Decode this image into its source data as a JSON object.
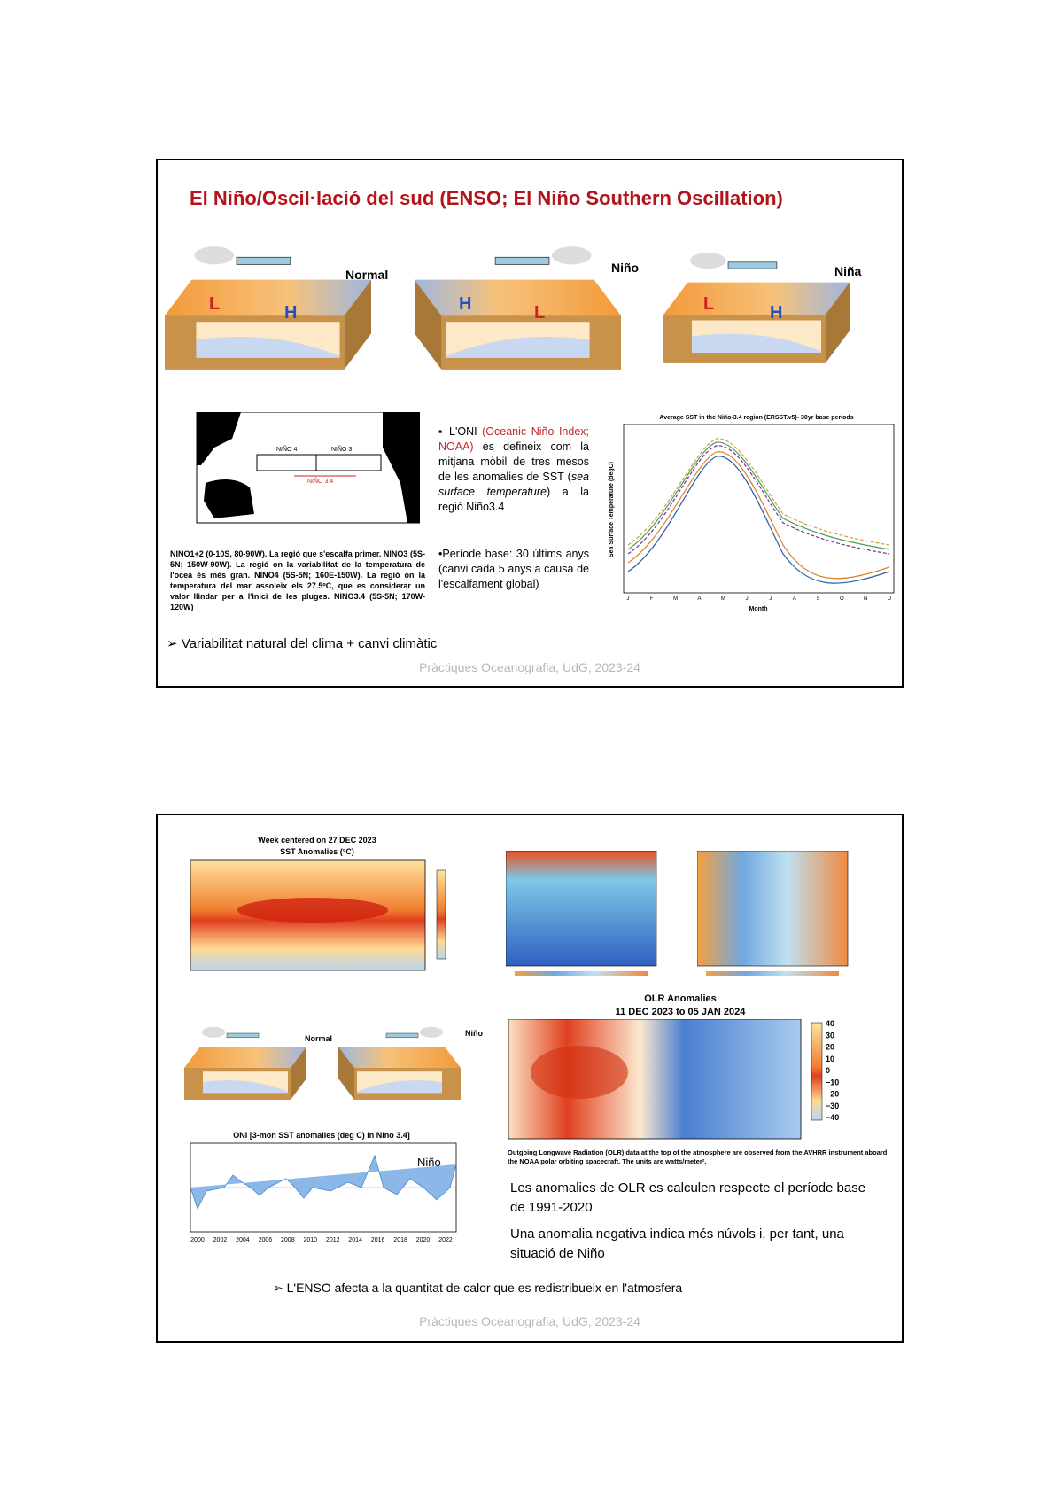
{
  "slides": [
    {
      "title": "El Niño/Oscil·lació del sud (ENSO; El Niño Southern Oscillation)",
      "diagram_labels": [
        "Normal",
        "Niño",
        "Niña"
      ],
      "map_labels": [
        "NIÑO 4",
        "NIÑO 3",
        "NIÑO 3.4"
      ],
      "map_caption": "NINO1+2 (0-10S, 80-90W). La regió que s'escalfa primer. NINO3 (5S-5N; 150W-90W). La regió on la variabilitat de la temperatura de l'oceà és més gran. NINO4 (5S-5N; 160E-150W). La regió on la temperatura del mar assoleix els 27.5ºC, que es considerar un valor llindar per a l'inici de les pluges. NINO3.4 (5S-5N; 170W-120W)",
      "oni_text": [
        "L'ONI ",
        "(Oceanic Niño Index; NOAA)",
        " es defineix com la mitjana mòbil de tres mesos de les anomalies de SST (",
        "sea surface temperature",
        ") a la regió Niño3.4"
      ],
      "base_text": "•Període base: 30 últims anys (canvi cada 5 anys a causa de l'escalfament global)",
      "sst_chart": {
        "title": "Average SST in the Niño-3.4 region (ERSST.v5)- 30yr base periods",
        "ylabel": "Sea Surface Temperature (degC)",
        "xlabel": "Month",
        "months": [
          "J",
          "F",
          "M",
          "A",
          "M",
          "J",
          "J",
          "A",
          "S",
          "O",
          "N",
          "D"
        ]
      },
      "conclusion": "Variabilitat natural del clima + canvi climàtic",
      "footer": "Pràctiques Oceanografia, UdG, 2023-24"
    },
    {
      "sst_map": {
        "title": "Week centered on 27 DEC 2023",
        "subtitle": "SST Anomalies (°C)"
      },
      "diagram_labels": [
        "Normal",
        "Niño"
      ],
      "oni_chart": {
        "title": "ONI [3-mon SST anomalies (deg C) in Nino 3.4]",
        "label": "Niño",
        "years": [
          "2000",
          "2002",
          "2004",
          "2006",
          "2008",
          "2010",
          "2012",
          "2014",
          "2016",
          "2018",
          "2020",
          "2022"
        ]
      },
      "olr": {
        "title": "OLR Anomalies",
        "subtitle": "11 DEC 2023 to 05 JAN 2024",
        "scale": [
          "40",
          "30",
          "20",
          "10",
          "0",
          "−10",
          "−20",
          "−30",
          "−40"
        ],
        "caption": "Outgoing Longwave Radiation (OLR) data at the top of the atmosphere are observed from the AVHRR instrument aboard the NOAA polar orbiting spacecraft. The units are watts/meter²."
      },
      "paragraphs": [
        "Les anomalies de OLR es calculen respecte el període base de 1991-2020",
        "Una anomalia negativa indica més núvols i, per tant, una situació de Niño"
      ],
      "conclusion": "L'ENSO afecta a la quantitat de calor que es redistribueix en l'atmosfera",
      "footer": "Pràctiques Oceanografia, UdG, 2023-24"
    }
  ]
}
